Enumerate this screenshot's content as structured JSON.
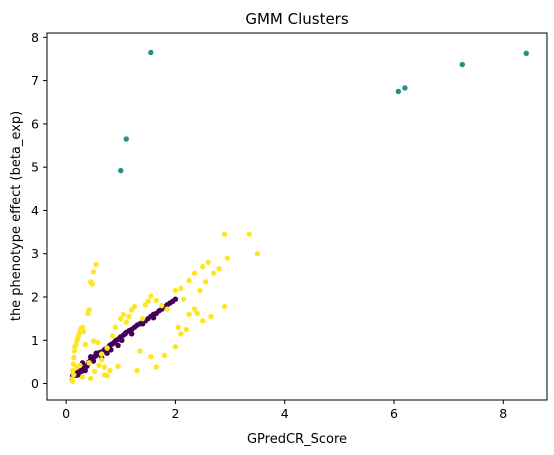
{
  "chart_data": {
    "type": "scatter",
    "title": "GMM Clusters",
    "xlabel": "GPredCR_Score",
    "ylabel": "the phenotype effect (beta_exp)",
    "xlim": [
      -0.35,
      8.8
    ],
    "ylim": [
      -0.38,
      8.1
    ],
    "xticks": [
      0,
      2,
      4,
      6,
      8
    ],
    "yticks": [
      0,
      1,
      2,
      3,
      4,
      5,
      6,
      7,
      8
    ],
    "grid": false,
    "legend": "none",
    "series": [
      {
        "color": "#440154",
        "points": [
          [
            0.12,
            0.18
          ],
          [
            0.15,
            0.22
          ],
          [
            0.18,
            0.19
          ],
          [
            0.2,
            0.25
          ],
          [
            0.22,
            0.2
          ],
          [
            0.25,
            0.3
          ],
          [
            0.28,
            0.28
          ],
          [
            0.3,
            0.32
          ],
          [
            0.32,
            0.35
          ],
          [
            0.35,
            0.38
          ],
          [
            0.38,
            0.4
          ],
          [
            0.4,
            0.45
          ],
          [
            0.42,
            0.5
          ],
          [
            0.45,
            0.55
          ],
          [
            0.48,
            0.58
          ],
          [
            0.5,
            0.6
          ],
          [
            0.52,
            0.62
          ],
          [
            0.55,
            0.65
          ],
          [
            0.58,
            0.68
          ],
          [
            0.6,
            0.7
          ],
          [
            0.62,
            0.72
          ],
          [
            0.65,
            0.68
          ],
          [
            0.68,
            0.75
          ],
          [
            0.7,
            0.78
          ],
          [
            0.72,
            0.8
          ],
          [
            0.75,
            0.82
          ],
          [
            0.78,
            0.85
          ],
          [
            0.8,
            0.88
          ],
          [
            0.82,
            0.9
          ],
          [
            0.85,
            0.92
          ],
          [
            0.88,
            0.95
          ],
          [
            0.9,
            0.98
          ],
          [
            0.92,
            1.0
          ],
          [
            0.95,
            1.02
          ],
          [
            0.98,
            1.05
          ],
          [
            1.0,
            1.08
          ],
          [
            1.05,
            1.12
          ],
          [
            1.08,
            1.15
          ],
          [
            1.1,
            1.18
          ],
          [
            1.15,
            1.22
          ],
          [
            1.2,
            1.25
          ],
          [
            1.25,
            1.3
          ],
          [
            1.3,
            1.35
          ],
          [
            1.35,
            1.38
          ],
          [
            1.4,
            1.42
          ],
          [
            1.45,
            1.45
          ],
          [
            1.5,
            1.5
          ],
          [
            1.55,
            1.55
          ],
          [
            1.6,
            1.6
          ],
          [
            1.65,
            1.62
          ],
          [
            1.7,
            1.68
          ],
          [
            1.75,
            1.72
          ],
          [
            1.8,
            1.78
          ],
          [
            1.85,
            1.82
          ],
          [
            1.9,
            1.86
          ],
          [
            1.95,
            1.9
          ],
          [
            2.0,
            1.95
          ],
          [
            0.3,
            0.48
          ],
          [
            0.45,
            0.62
          ],
          [
            0.55,
            0.7
          ],
          [
            0.65,
            0.6
          ],
          [
            0.5,
            0.52
          ],
          [
            0.35,
            0.3
          ],
          [
            1.2,
            1.15
          ],
          [
            1.4,
            1.38
          ],
          [
            1.6,
            1.52
          ],
          [
            0.75,
            0.7
          ],
          [
            0.82,
            0.78
          ],
          [
            0.95,
            0.88
          ],
          [
            1.02,
            1.0
          ]
        ]
      },
      {
        "color": "#21918c",
        "points": [
          [
            1.0,
            4.92
          ],
          [
            1.1,
            5.65
          ],
          [
            1.55,
            7.65
          ],
          [
            6.08,
            6.75
          ],
          [
            6.2,
            6.83
          ],
          [
            7.25,
            7.37
          ],
          [
            8.42,
            7.63
          ]
        ]
      },
      {
        "color": "#fde725",
        "points": [
          [
            0.1,
            0.1
          ],
          [
            0.12,
            0.3
          ],
          [
            0.13,
            0.45
          ],
          [
            0.14,
            0.6
          ],
          [
            0.15,
            0.75
          ],
          [
            0.16,
            0.85
          ],
          [
            0.18,
            0.9
          ],
          [
            0.2,
            1.0
          ],
          [
            0.22,
            1.08
          ],
          [
            0.24,
            1.15
          ],
          [
            0.26,
            1.22
          ],
          [
            0.28,
            1.28
          ],
          [
            0.3,
            1.3
          ],
          [
            0.12,
            0.05
          ],
          [
            0.14,
            0.2
          ],
          [
            0.2,
            0.38
          ],
          [
            0.25,
            0.42
          ],
          [
            0.3,
            0.15
          ],
          [
            0.35,
            0.9
          ],
          [
            0.4,
            1.62
          ],
          [
            0.42,
            1.7
          ],
          [
            0.45,
            2.35
          ],
          [
            0.48,
            2.3
          ],
          [
            0.5,
            2.58
          ],
          [
            0.55,
            2.75
          ],
          [
            0.52,
            0.28
          ],
          [
            0.6,
            0.42
          ],
          [
            0.65,
            0.55
          ],
          [
            0.45,
            0.12
          ],
          [
            0.7,
            0.2
          ],
          [
            0.8,
            0.3
          ],
          [
            0.65,
            0.68
          ],
          [
            0.75,
            0.82
          ],
          [
            0.5,
            0.98
          ],
          [
            0.85,
            1.1
          ],
          [
            0.9,
            1.3
          ],
          [
            1.0,
            1.5
          ],
          [
            1.05,
            1.6
          ],
          [
            1.1,
            1.42
          ],
          [
            1.15,
            1.55
          ],
          [
            1.2,
            1.7
          ],
          [
            1.25,
            1.78
          ],
          [
            1.4,
            1.5
          ],
          [
            1.45,
            1.82
          ],
          [
            1.5,
            1.9
          ],
          [
            1.55,
            2.02
          ],
          [
            1.65,
            1.92
          ],
          [
            1.75,
            1.8
          ],
          [
            1.85,
            1.72
          ],
          [
            2.0,
            2.15
          ],
          [
            2.1,
            2.2
          ],
          [
            2.15,
            1.95
          ],
          [
            2.25,
            2.38
          ],
          [
            2.35,
            2.55
          ],
          [
            2.5,
            2.7
          ],
          [
            2.6,
            2.8
          ],
          [
            2.7,
            2.55
          ],
          [
            2.8,
            2.65
          ],
          [
            2.95,
            2.9
          ],
          [
            2.9,
            3.45
          ],
          [
            3.35,
            3.45
          ],
          [
            3.5,
            3.0
          ],
          [
            2.55,
            2.35
          ],
          [
            2.45,
            2.15
          ],
          [
            2.25,
            1.6
          ],
          [
            2.35,
            1.72
          ],
          [
            2.05,
            1.3
          ],
          [
            2.1,
            1.15
          ],
          [
            2.2,
            1.25
          ],
          [
            2.5,
            1.45
          ],
          [
            2.65,
            1.55
          ],
          [
            2.9,
            1.78
          ],
          [
            1.55,
            0.62
          ],
          [
            1.65,
            0.38
          ],
          [
            1.3,
            0.3
          ],
          [
            0.75,
            0.18
          ],
          [
            0.95,
            0.4
          ],
          [
            0.42,
            0.48
          ],
          [
            0.58,
            0.95
          ],
          [
            0.32,
            1.2
          ],
          [
            1.8,
            0.65
          ],
          [
            2.0,
            0.85
          ],
          [
            2.4,
            1.62
          ],
          [
            1.35,
            0.75
          ],
          [
            0.7,
            0.38
          ]
        ]
      }
    ]
  }
}
